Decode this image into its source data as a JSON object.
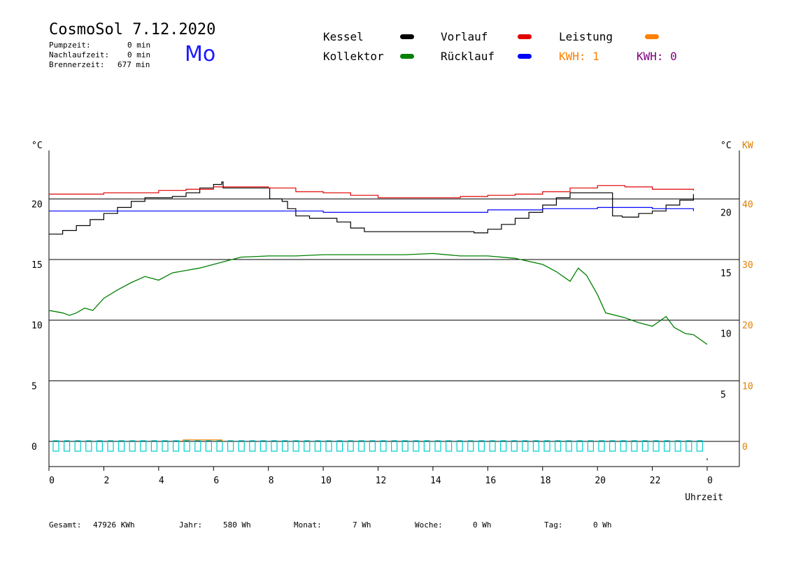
{
  "header": {
    "title": "CosmoSol 7.12.2020",
    "day": "Mo",
    "stats": [
      {
        "label": "Pumpzeit:",
        "value": "0 min"
      },
      {
        "label": "Nachlaufzeit:",
        "value": "0 min"
      },
      {
        "label": "Brennerzeit:",
        "value": "677 min"
      }
    ]
  },
  "legend": {
    "kessel": {
      "label": "Kessel",
      "color": "#000000"
    },
    "vorlauf": {
      "label": "Vorlauf",
      "color": "#e00000"
    },
    "leistung": {
      "label": "Leistung",
      "color": "#ff8000"
    },
    "kollektor": {
      "label": "Kollektor",
      "color": "#008000"
    },
    "ruecklauf": {
      "label": "Rücklauf",
      "color": "#0000ff"
    },
    "kwh1": {
      "label": "KWH: 1",
      "color": "#ff8000"
    },
    "kwh2": {
      "label": "KWH: 0",
      "color": "#800080"
    }
  },
  "footer": {
    "gesamt_label": "Gesamt:",
    "gesamt_value": "47926 KWh",
    "jahr_label": "Jahr:",
    "jahr_value": "580 Wh",
    "monat_label": "Monat:",
    "monat_value": "7 Wh",
    "woche_label": "Woche:",
    "woche_value": "0 Wh",
    "tag_label": "Tag:",
    "tag_value": "0 Wh"
  },
  "chart_data": {
    "type": "line",
    "xlabel": "Uhrzeit",
    "x_ticks": [
      "0",
      "2",
      "4",
      "6",
      "8",
      "10",
      "12",
      "14",
      "16",
      "18",
      "20",
      "22",
      "0"
    ],
    "xlim": [
      0,
      24
    ],
    "ylabel_left": "°C",
    "ylabel_right": "°C",
    "ylabel_right2": "KW",
    "ylim": [
      -2,
      25
    ],
    "y_ticks_left": [
      "0",
      "5",
      "10",
      "15",
      "20"
    ],
    "y_ticks_right": [
      "5",
      "10",
      "15",
      "20"
    ],
    "y_ticks_kw": [
      "0",
      "10",
      "20",
      "30",
      "40"
    ],
    "grid": "horizontal",
    "series": [
      {
        "name": "Kessel",
        "color": "#000000",
        "step": true,
        "points": [
          [
            0,
            17.1
          ],
          [
            0.5,
            17.4
          ],
          [
            1,
            17.8
          ],
          [
            1.5,
            18.3
          ],
          [
            2,
            18.8
          ],
          [
            2.5,
            19.3
          ],
          [
            3,
            19.8
          ],
          [
            3.5,
            20.1
          ],
          [
            4,
            20.1
          ],
          [
            4.5,
            20.2
          ],
          [
            5,
            20.5
          ],
          [
            5.5,
            20.9
          ],
          [
            6,
            21.2
          ],
          [
            6.3,
            21.4
          ],
          [
            6.35,
            20.9
          ],
          [
            6.5,
            20.9
          ],
          [
            7,
            20.9
          ],
          [
            7.5,
            20.9
          ],
          [
            8,
            20.9
          ],
          [
            8.05,
            20.0
          ],
          [
            8.5,
            19.8
          ],
          [
            8.7,
            19.2
          ],
          [
            9,
            18.6
          ],
          [
            9.5,
            18.4
          ],
          [
            10,
            18.4
          ],
          [
            10.5,
            18.1
          ],
          [
            11,
            17.6
          ],
          [
            11.5,
            17.3
          ],
          [
            12,
            17.3
          ],
          [
            13,
            17.3
          ],
          [
            14,
            17.3
          ],
          [
            15,
            17.3
          ],
          [
            15.5,
            17.2
          ],
          [
            16,
            17.5
          ],
          [
            16.5,
            17.9
          ],
          [
            17,
            18.4
          ],
          [
            17.5,
            18.9
          ],
          [
            18,
            19.5
          ],
          [
            18.5,
            20.1
          ],
          [
            19,
            20.5
          ],
          [
            19.5,
            20.5
          ],
          [
            20,
            20.5
          ],
          [
            20.5,
            20.5
          ],
          [
            20.55,
            18.6
          ],
          [
            20.9,
            18.5
          ],
          [
            21,
            18.5
          ],
          [
            21.5,
            18.8
          ],
          [
            22,
            19.0
          ],
          [
            22.5,
            19.5
          ],
          [
            23,
            19.9
          ],
          [
            23.5,
            20.4
          ]
        ]
      },
      {
        "name": "Vorlauf",
        "color": "#e00000",
        "step": true,
        "points": [
          [
            0,
            20.4
          ],
          [
            1,
            20.4
          ],
          [
            2,
            20.5
          ],
          [
            3,
            20.5
          ],
          [
            4,
            20.7
          ],
          [
            5,
            20.8
          ],
          [
            6,
            21.0
          ],
          [
            7,
            21.0
          ],
          [
            8,
            20.9
          ],
          [
            9,
            20.6
          ],
          [
            10,
            20.5
          ],
          [
            11,
            20.3
          ],
          [
            12,
            20.1
          ],
          [
            13,
            20.1
          ],
          [
            14,
            20.1
          ],
          [
            15,
            20.2
          ],
          [
            16,
            20.3
          ],
          [
            17,
            20.4
          ],
          [
            18,
            20.6
          ],
          [
            19,
            20.9
          ],
          [
            20,
            21.1
          ],
          [
            21,
            21.0
          ],
          [
            22,
            20.8
          ],
          [
            23,
            20.8
          ],
          [
            23.5,
            20.7
          ]
        ]
      },
      {
        "name": "Rücklauf",
        "color": "#0000ff",
        "step": true,
        "points": [
          [
            0,
            19.0
          ],
          [
            2,
            19.0
          ],
          [
            4,
            19.0
          ],
          [
            6,
            19.0
          ],
          [
            8,
            19.0
          ],
          [
            10,
            18.9
          ],
          [
            12,
            18.9
          ],
          [
            14,
            18.9
          ],
          [
            15.5,
            18.9
          ],
          [
            16,
            19.1
          ],
          [
            18,
            19.2
          ],
          [
            20,
            19.3
          ],
          [
            22,
            19.2
          ],
          [
            23.5,
            19.0
          ]
        ]
      },
      {
        "name": "Kollektor",
        "color": "#008000",
        "step": false,
        "points": [
          [
            0,
            10.8
          ],
          [
            0.5,
            10.6
          ],
          [
            0.75,
            10.4
          ],
          [
            1,
            10.6
          ],
          [
            1.3,
            11.0
          ],
          [
            1.6,
            10.8
          ],
          [
            2,
            11.8
          ],
          [
            2.5,
            12.5
          ],
          [
            3,
            13.1
          ],
          [
            3.5,
            13.6
          ],
          [
            4,
            13.3
          ],
          [
            4.5,
            13.9
          ],
          [
            5,
            14.1
          ],
          [
            5.5,
            14.3
          ],
          [
            6,
            14.6
          ],
          [
            6.5,
            14.9
          ],
          [
            7,
            15.2
          ],
          [
            8,
            15.3
          ],
          [
            9,
            15.3
          ],
          [
            10,
            15.4
          ],
          [
            11,
            15.4
          ],
          [
            12,
            15.4
          ],
          [
            13,
            15.4
          ],
          [
            14,
            15.5
          ],
          [
            15,
            15.3
          ],
          [
            16,
            15.3
          ],
          [
            17,
            15.1
          ],
          [
            18,
            14.6
          ],
          [
            18.5,
            14.0
          ],
          [
            19,
            13.2
          ],
          [
            19.3,
            14.3
          ],
          [
            19.6,
            13.7
          ],
          [
            20,
            12.1
          ],
          [
            20.3,
            10.6
          ],
          [
            21,
            10.2
          ],
          [
            21.5,
            9.8
          ],
          [
            22,
            9.5
          ],
          [
            22.5,
            10.3
          ],
          [
            22.8,
            9.4
          ],
          [
            23.2,
            8.9
          ],
          [
            23.5,
            8.8
          ],
          [
            24,
            8.0
          ]
        ]
      }
    ],
    "kw_series": {
      "name": "Leistung",
      "color": "#ff8000",
      "points": [
        [
          4.85,
          0
        ],
        [
          4.9,
          0.25
        ],
        [
          6.3,
          0.25
        ],
        [
          6.35,
          0
        ]
      ]
    },
    "pump_blocks_color": "#00cccc"
  }
}
